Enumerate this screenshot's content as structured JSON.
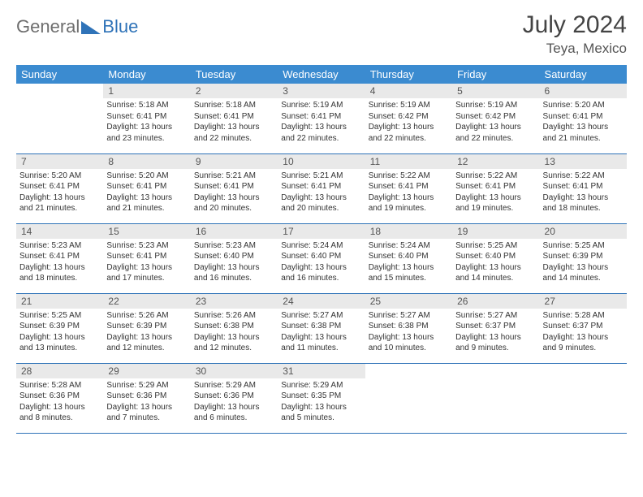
{
  "logo": {
    "text_left": "General",
    "text_right": "Blue"
  },
  "header": {
    "title": "July 2024",
    "location": "Teya, Mexico"
  },
  "colors": {
    "header_bg": "#3b8bd0",
    "header_text": "#ffffff",
    "row_border": "#2f73b8",
    "daynum_bg": "#e9e9e9",
    "logo_gray": "#6e6e6e",
    "logo_blue": "#2f73b8",
    "page_bg": "#ffffff"
  },
  "weekdays": [
    "Sunday",
    "Monday",
    "Tuesday",
    "Wednesday",
    "Thursday",
    "Friday",
    "Saturday"
  ],
  "grid": [
    [
      null,
      {
        "n": "1",
        "sr": "5:18 AM",
        "ss": "6:41 PM",
        "dl": "13 hours and 23 minutes."
      },
      {
        "n": "2",
        "sr": "5:18 AM",
        "ss": "6:41 PM",
        "dl": "13 hours and 22 minutes."
      },
      {
        "n": "3",
        "sr": "5:19 AM",
        "ss": "6:41 PM",
        "dl": "13 hours and 22 minutes."
      },
      {
        "n": "4",
        "sr": "5:19 AM",
        "ss": "6:42 PM",
        "dl": "13 hours and 22 minutes."
      },
      {
        "n": "5",
        "sr": "5:19 AM",
        "ss": "6:42 PM",
        "dl": "13 hours and 22 minutes."
      },
      {
        "n": "6",
        "sr": "5:20 AM",
        "ss": "6:41 PM",
        "dl": "13 hours and 21 minutes."
      }
    ],
    [
      {
        "n": "7",
        "sr": "5:20 AM",
        "ss": "6:41 PM",
        "dl": "13 hours and 21 minutes."
      },
      {
        "n": "8",
        "sr": "5:20 AM",
        "ss": "6:41 PM",
        "dl": "13 hours and 21 minutes."
      },
      {
        "n": "9",
        "sr": "5:21 AM",
        "ss": "6:41 PM",
        "dl": "13 hours and 20 minutes."
      },
      {
        "n": "10",
        "sr": "5:21 AM",
        "ss": "6:41 PM",
        "dl": "13 hours and 20 minutes."
      },
      {
        "n": "11",
        "sr": "5:22 AM",
        "ss": "6:41 PM",
        "dl": "13 hours and 19 minutes."
      },
      {
        "n": "12",
        "sr": "5:22 AM",
        "ss": "6:41 PM",
        "dl": "13 hours and 19 minutes."
      },
      {
        "n": "13",
        "sr": "5:22 AM",
        "ss": "6:41 PM",
        "dl": "13 hours and 18 minutes."
      }
    ],
    [
      {
        "n": "14",
        "sr": "5:23 AM",
        "ss": "6:41 PM",
        "dl": "13 hours and 18 minutes."
      },
      {
        "n": "15",
        "sr": "5:23 AM",
        "ss": "6:41 PM",
        "dl": "13 hours and 17 minutes."
      },
      {
        "n": "16",
        "sr": "5:23 AM",
        "ss": "6:40 PM",
        "dl": "13 hours and 16 minutes."
      },
      {
        "n": "17",
        "sr": "5:24 AM",
        "ss": "6:40 PM",
        "dl": "13 hours and 16 minutes."
      },
      {
        "n": "18",
        "sr": "5:24 AM",
        "ss": "6:40 PM",
        "dl": "13 hours and 15 minutes."
      },
      {
        "n": "19",
        "sr": "5:25 AM",
        "ss": "6:40 PM",
        "dl": "13 hours and 14 minutes."
      },
      {
        "n": "20",
        "sr": "5:25 AM",
        "ss": "6:39 PM",
        "dl": "13 hours and 14 minutes."
      }
    ],
    [
      {
        "n": "21",
        "sr": "5:25 AM",
        "ss": "6:39 PM",
        "dl": "13 hours and 13 minutes."
      },
      {
        "n": "22",
        "sr": "5:26 AM",
        "ss": "6:39 PM",
        "dl": "13 hours and 12 minutes."
      },
      {
        "n": "23",
        "sr": "5:26 AM",
        "ss": "6:38 PM",
        "dl": "13 hours and 12 minutes."
      },
      {
        "n": "24",
        "sr": "5:27 AM",
        "ss": "6:38 PM",
        "dl": "13 hours and 11 minutes."
      },
      {
        "n": "25",
        "sr": "5:27 AM",
        "ss": "6:38 PM",
        "dl": "13 hours and 10 minutes."
      },
      {
        "n": "26",
        "sr": "5:27 AM",
        "ss": "6:37 PM",
        "dl": "13 hours and 9 minutes."
      },
      {
        "n": "27",
        "sr": "5:28 AM",
        "ss": "6:37 PM",
        "dl": "13 hours and 9 minutes."
      }
    ],
    [
      {
        "n": "28",
        "sr": "5:28 AM",
        "ss": "6:36 PM",
        "dl": "13 hours and 8 minutes."
      },
      {
        "n": "29",
        "sr": "5:29 AM",
        "ss": "6:36 PM",
        "dl": "13 hours and 7 minutes."
      },
      {
        "n": "30",
        "sr": "5:29 AM",
        "ss": "6:36 PM",
        "dl": "13 hours and 6 minutes."
      },
      {
        "n": "31",
        "sr": "5:29 AM",
        "ss": "6:35 PM",
        "dl": "13 hours and 5 minutes."
      },
      null,
      null,
      null
    ]
  ],
  "labels": {
    "sunrise": "Sunrise:",
    "sunset": "Sunset:",
    "daylight": "Daylight:"
  }
}
